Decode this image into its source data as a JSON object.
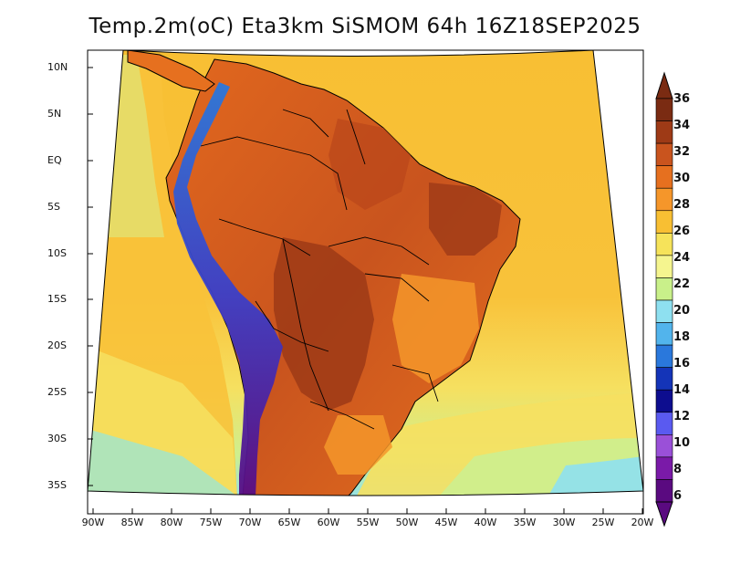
{
  "title": "Temp.2m(oC) Eta3km SiSMOM 64h 16Z18SEP2025",
  "lat_labels": [
    "10N",
    "5N",
    "EQ",
    "5S",
    "10S",
    "15S",
    "20S",
    "25S",
    "30S",
    "35S"
  ],
  "lon_labels": [
    "90W",
    "85W",
    "80W",
    "75W",
    "70W",
    "65W",
    "60W",
    "55W",
    "50W",
    "45W",
    "40W",
    "35W",
    "30W",
    "25W",
    "20W"
  ],
  "colorbar": {
    "labels": [
      "36",
      "34",
      "32",
      "30",
      "28",
      "26",
      "24",
      "22",
      "20",
      "18",
      "16",
      "14",
      "12",
      "10",
      "8",
      "6"
    ],
    "colors": [
      "#7a2b12",
      "#9e3a16",
      "#c9541e",
      "#e6701f",
      "#f5962a",
      "#f8bf33",
      "#f6e35a",
      "#f5f58f",
      "#c9f08a",
      "#8ee0f0",
      "#52b4ec",
      "#2a78dc",
      "#1434b8",
      "#0d0d8f",
      "#5a5af0",
      "#9a50d8",
      "#7a1aa8",
      "#5a0a80"
    ]
  },
  "colors": {
    "ocean_warm": "#f8c23a",
    "ocean_mid": "#f6e060",
    "ocean_cool": "#cdef8f",
    "land_hot": "#b9461a",
    "land_warm": "#e2681e",
    "andes": "#3b3fc9"
  }
}
